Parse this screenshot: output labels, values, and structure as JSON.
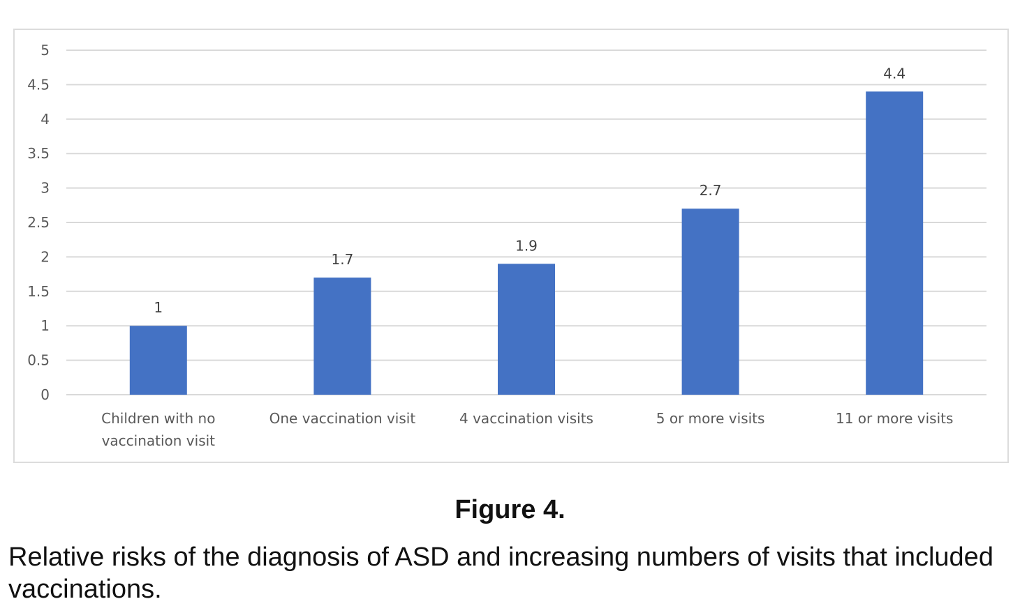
{
  "chart_data": {
    "type": "bar",
    "categories": [
      [
        "Children with no",
        "vaccination visit"
      ],
      [
        "One vaccination visit"
      ],
      [
        "4 vaccination visits"
      ],
      [
        "5 or more visits"
      ],
      [
        "11 or more visits"
      ]
    ],
    "values": [
      1,
      1.7,
      1.9,
      2.7,
      4.4
    ],
    "data_labels": [
      "1",
      "1.7",
      "1.9",
      "2.7",
      "4.4"
    ],
    "ylim": [
      0,
      5
    ],
    "yticks": [
      "0",
      "0.5",
      "1",
      "1.5",
      "2",
      "2.5",
      "3",
      "3.5",
      "4",
      "4.5",
      "5"
    ],
    "grid": true,
    "bar_color": "#4472c4",
    "grid_color": "#d9d9d9"
  },
  "figure": {
    "label": "Figure 4.",
    "caption": "Relative risks of the diagnosis of ASD and increasing numbers of visits that included vaccinations."
  }
}
